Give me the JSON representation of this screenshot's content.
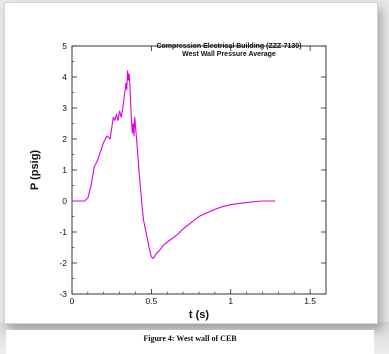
{
  "chart_data": {
    "type": "line",
    "title": "Compression Electrical Building (ZZZ-7130)",
    "subtitle": "West Wall Pressure Average",
    "xlabel": "t (s)",
    "ylabel": "P (psig)",
    "xlim": [
      0,
      1.6
    ],
    "ylim": [
      -3,
      5
    ],
    "x_ticks": [
      "0",
      "0.5",
      "1",
      "1.5"
    ],
    "y_ticks": [
      "-3",
      "-2",
      "-1",
      "0",
      "1",
      "2",
      "3",
      "4",
      "5"
    ],
    "line_color": "#dd00dd",
    "series": [
      {
        "x": [
          0.0,
          0.02,
          0.05,
          0.08,
          0.1,
          0.12,
          0.14,
          0.16,
          0.18,
          0.2,
          0.22,
          0.24,
          0.26,
          0.27,
          0.28,
          0.29,
          0.3,
          0.31,
          0.32,
          0.33,
          0.34,
          0.345,
          0.35,
          0.355,
          0.36,
          0.365,
          0.37,
          0.375,
          0.38,
          0.385,
          0.39,
          0.395,
          0.4,
          0.41,
          0.42,
          0.43,
          0.44,
          0.45,
          0.47,
          0.49,
          0.5,
          0.51,
          0.52,
          0.53,
          0.55,
          0.58,
          0.62,
          0.66,
          0.7,
          0.75,
          0.8,
          0.85,
          0.9,
          0.95,
          1.0,
          1.05,
          1.1,
          1.15,
          1.2,
          1.25,
          1.28
        ],
        "y": [
          0.0,
          0.0,
          0.0,
          0.0,
          0.1,
          0.5,
          1.1,
          1.3,
          1.6,
          1.9,
          2.1,
          2.0,
          2.7,
          2.6,
          2.8,
          2.6,
          2.9,
          2.7,
          3.0,
          3.4,
          3.8,
          3.6,
          4.2,
          3.9,
          4.1,
          3.7,
          3.1,
          2.6,
          2.2,
          2.5,
          2.1,
          2.7,
          2.4,
          1.8,
          1.1,
          0.5,
          -0.1,
          -0.6,
          -1.1,
          -1.6,
          -1.8,
          -1.85,
          -1.8,
          -1.7,
          -1.6,
          -1.4,
          -1.25,
          -1.1,
          -0.9,
          -0.7,
          -0.5,
          -0.38,
          -0.27,
          -0.18,
          -0.12,
          -0.08,
          -0.05,
          -0.02,
          0.0,
          0.0,
          0.0
        ]
      }
    ]
  },
  "caption": "Figure 4:  West wall of CEB"
}
